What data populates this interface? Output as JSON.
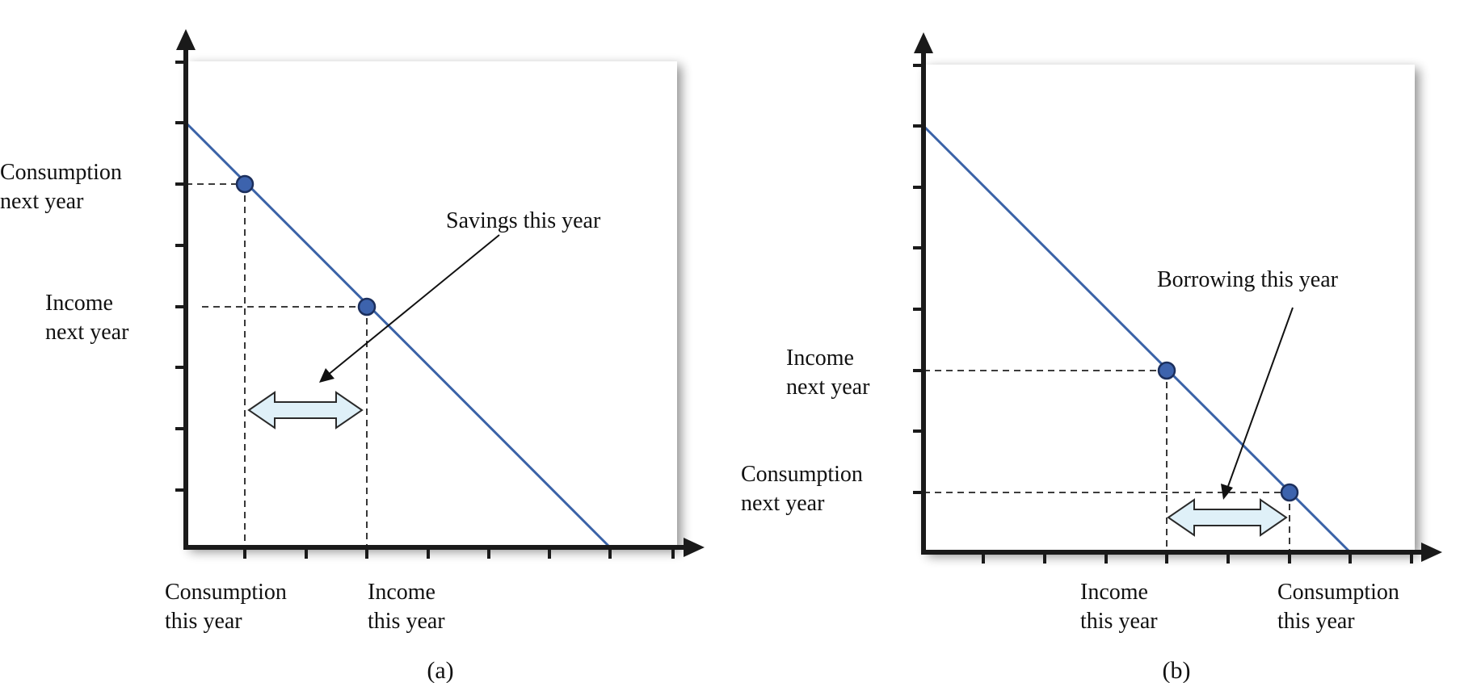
{
  "panels": [
    {
      "id": "a",
      "caption": "(a)",
      "y_labels": [
        {
          "lines": [
            "Consumption",
            "next year"
          ]
        },
        {
          "lines": [
            "Income",
            "next year"
          ]
        }
      ],
      "x_labels": [
        {
          "lines": [
            "Consumption",
            "this year"
          ]
        },
        {
          "lines": [
            "Income",
            "this year"
          ]
        }
      ],
      "annotation": "Savings this year"
    },
    {
      "id": "b",
      "caption": "(b)",
      "y_labels": [
        {
          "lines": [
            "Income",
            "next year"
          ]
        },
        {
          "lines": [
            "Consumption",
            "next year"
          ]
        }
      ],
      "x_labels": [
        {
          "lines": [
            "Income",
            "this year"
          ]
        },
        {
          "lines": [
            "Consumption",
            "this year"
          ]
        }
      ],
      "annotation": "Borrowing this year"
    }
  ],
  "colors": {
    "budget_line": "#3a62a7",
    "point_fill": "#3d63ad",
    "double_arrow_fill": "#dff0f8",
    "axis": "#1a1a1a"
  }
}
